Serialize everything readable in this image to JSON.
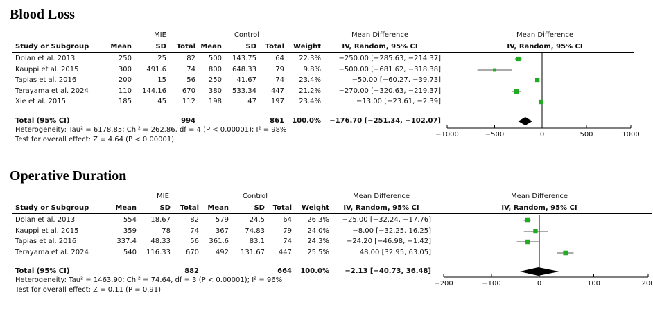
{
  "headers": {
    "study": "Study or Subgroup",
    "group1": "MIE",
    "group2": "Control",
    "mean": "Mean",
    "sd": "SD",
    "total": "Total",
    "weight": "Weight",
    "md": "Mean Difference",
    "md_method": "IV, Random, 95% CI"
  },
  "colors": {
    "marker": "#22aa22",
    "diamond": "#000000",
    "axis": "#000000",
    "ci_line": "#555555"
  },
  "chart_data": [
    {
      "type": "forest",
      "title": "Blood Loss",
      "xlim": [
        -1000,
        1000
      ],
      "ticks": [
        -1000,
        -500,
        0,
        500,
        1000
      ],
      "tick_labels": [
        "−1000",
        "−500",
        "0",
        "500",
        "1000"
      ],
      "studies": [
        {
          "name": "Dolan et al. 2013",
          "mie_mean": "250",
          "mie_sd": "25",
          "mie_total": "82",
          "ctl_mean": "500",
          "ctl_sd": "143.75",
          "ctl_total": "64",
          "weight": "22.3%",
          "ci_text": "−250.00 [−285.63, −214.37]",
          "md": -250.0,
          "lo": -285.63,
          "hi": -214.37,
          "w": 22.3
        },
        {
          "name": "Kauppi et al. 2015",
          "mie_mean": "300",
          "mie_sd": "491.6",
          "mie_total": "74",
          "ctl_mean": "800",
          "ctl_sd": "648.33",
          "ctl_total": "79",
          "weight": "9.8%",
          "ci_text": "−500.00 [−681.62, −318.38]",
          "md": -500.0,
          "lo": -681.62,
          "hi": -318.38,
          "w": 9.8
        },
        {
          "name": "Tapias et al. 2016",
          "mie_mean": "200",
          "mie_sd": "15",
          "mie_total": "56",
          "ctl_mean": "250",
          "ctl_sd": "41.67",
          "ctl_total": "74",
          "weight": "23.4%",
          "ci_text": "−50.00 [−60.27, −39.73]",
          "md": -50.0,
          "lo": -60.27,
          "hi": -39.73,
          "w": 23.4
        },
        {
          "name": "Terayama et al. 2024",
          "mie_mean": "110",
          "mie_sd": "144.16",
          "mie_total": "670",
          "ctl_mean": "380",
          "ctl_sd": "533.34",
          "ctl_total": "447",
          "weight": "21.2%",
          "ci_text": "−270.00 [−320.63, −219.37]",
          "md": -270.0,
          "lo": -320.63,
          "hi": -219.37,
          "w": 21.2
        },
        {
          "name": "Xie et al. 2015",
          "mie_mean": "185",
          "mie_sd": "45",
          "mie_total": "112",
          "ctl_mean": "198",
          "ctl_sd": "47",
          "ctl_total": "197",
          "weight": "23.4%",
          "ci_text": "−13.00 [−23.61, −2.39]",
          "md": -13.0,
          "lo": -23.61,
          "hi": -2.39,
          "w": 23.4
        }
      ],
      "total": {
        "label": "Total (95% CI)",
        "mie_total": "994",
        "ctl_total": "861",
        "weight": "100.0%",
        "ci_text": "−176.70 [−251.34, −102.07]",
        "md": -176.7,
        "lo": -251.34,
        "hi": -102.07
      },
      "heterogeneity": "Heterogeneity: Tau² = 6178.85; Chi² = 262.86, df = 4 (P < 0.00001); I² = 98%",
      "overall_effect": "Test for overall effect: Z = 4.64 (P < 0.00001)"
    },
    {
      "type": "forest",
      "title": "Operative Duration",
      "xlim": [
        -200,
        200
      ],
      "ticks": [
        -200,
        -100,
        0,
        100,
        200
      ],
      "tick_labels": [
        "−200",
        "−100",
        "0",
        "100",
        "200"
      ],
      "studies": [
        {
          "name": "Dolan et al. 2013",
          "mie_mean": "554",
          "mie_sd": "18.67",
          "mie_total": "82",
          "ctl_mean": "579",
          "ctl_sd": "24.5",
          "ctl_total": "64",
          "weight": "26.3%",
          "ci_text": "−25.00 [−32.24, −17.76]",
          "md": -25.0,
          "lo": -32.24,
          "hi": -17.76,
          "w": 26.3
        },
        {
          "name": "Kauppi et al. 2015",
          "mie_mean": "359",
          "mie_sd": "78",
          "mie_total": "74",
          "ctl_mean": "367",
          "ctl_sd": "74.83",
          "ctl_total": "79",
          "weight": "24.0%",
          "ci_text": "−8.00 [−32.25, 16.25]",
          "md": -8.0,
          "lo": -32.25,
          "hi": 16.25,
          "w": 24.0
        },
        {
          "name": "Tapias et al. 2016",
          "mie_mean": "337.4",
          "mie_sd": "48.33",
          "mie_total": "56",
          "ctl_mean": "361.6",
          "ctl_sd": "83.1",
          "ctl_total": "74",
          "weight": "24.3%",
          "ci_text": "−24.20 [−46.98, −1.42]",
          "md": -24.2,
          "lo": -46.98,
          "hi": -1.42,
          "w": 24.3
        },
        {
          "name": "Terayama et al. 2024",
          "mie_mean": "540",
          "mie_sd": "116.33",
          "mie_total": "670",
          "ctl_mean": "492",
          "ctl_sd": "131.67",
          "ctl_total": "447",
          "weight": "25.5%",
          "ci_text": "48.00 [32.95, 63.05]",
          "md": 48.0,
          "lo": 32.95,
          "hi": 63.05,
          "w": 25.5
        }
      ],
      "total": {
        "label": "Total (95% CI)",
        "mie_total": "882",
        "ctl_total": "664",
        "weight": "100.0%",
        "ci_text": "−2.13 [−40.73, 36.48]",
        "md": -2.13,
        "lo": -40.73,
        "hi": 36.48
      },
      "heterogeneity": "Heterogeneity: Tau² = 1463.90; Chi² = 74.64, df = 3 (P < 0.00001); I² = 96%",
      "overall_effect": "Test for overall effect: Z = 0.11 (P = 0.91)"
    }
  ]
}
